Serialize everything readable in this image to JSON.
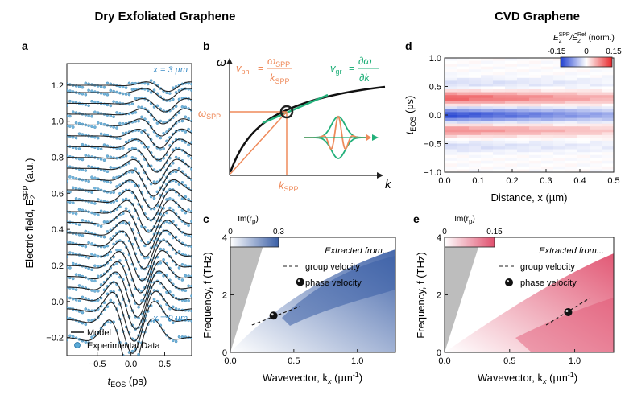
{
  "headings": {
    "left": "Dry Exfoliated Graphene",
    "right": "CVD Graphene"
  },
  "panel_letters": {
    "a": "a",
    "b": "b",
    "c": "c",
    "d": "d",
    "e": "e"
  },
  "panel_a": {
    "ylabel_main": "Electric field, E",
    "ylabel_sub": "2",
    "ylabel_sup": "SPP",
    "ylabel_unit": " (a.u.)",
    "xlabel_main": "t",
    "xlabel_sub": "EOS",
    "xlabel_unit": " (ps)",
    "top_label": "x = 3 µm",
    "bottom_label": "x = 0 µm",
    "legend_model": "Model",
    "legend_exp": "Experimental Data",
    "colors": {
      "model": "#222222",
      "exp": "#5aa9d6",
      "exp_edge": "#1f6fa3"
    }
  },
  "panel_b": {
    "omega_axis": "ω",
    "k_axis": "k",
    "omega_spp": "ω",
    "omega_spp_sub": "SPP",
    "k_spp": "k",
    "k_spp_sub": "SPP",
    "vph": "v",
    "vph_sub": "ph",
    "vph_eq": "=",
    "vph_num": "ω",
    "vph_num_sub": "SPP",
    "vph_den": "k",
    "vph_den_sub": "SPP",
    "vgr": "v",
    "vgr_sub": "gr",
    "vgr_eq": "=",
    "vgr_num": "∂ω",
    "vgr_den": "∂k",
    "colors": {
      "orange": "#ef8a5a",
      "green": "#22b07a"
    }
  },
  "panel_c": {
    "ylabel": "Frequency, f (THz)",
    "xlabel": "Wavevector, k",
    "xlabel_sub": "x",
    "xlabel_unit": " (µm",
    "xlabel_unit_sup": "-1",
    "xlabel_close": ")",
    "cbar_title": "Im(r",
    "cbar_sub": "p",
    "cbar_close": ")",
    "cbar_min": "0",
    "cbar_max": "0.3",
    "extracted": "Extracted from...",
    "group": "group velocity",
    "phase": "phase velocity",
    "colors": {
      "high": "#3b5fa6",
      "low": "#ffffff"
    }
  },
  "panel_d": {
    "ylabel": "t",
    "ylabel_sub": "EOS",
    "ylabel_unit": " (ps)",
    "xlabel": "Distance, x (µm)",
    "cbar_title_a": "E",
    "cbar_title_a_sub": "2",
    "cbar_title_a_sup": "SPP",
    "cbar_title_b": "/Ê",
    "cbar_title_b_sub": "2",
    "cbar_title_b_sup": "Ref",
    "cbar_title_c": " (norm.)",
    "cbar_ticks": [
      "-0.15",
      "0",
      "0.15"
    ],
    "colors": {
      "neg": "#1f3fd0",
      "pos": "#e8262a"
    }
  },
  "panel_e": {
    "ylabel": "Frequency, f (THz)",
    "xlabel": "Wavevector, k",
    "xlabel_sub": "x",
    "xlabel_unit": " (µm",
    "xlabel_unit_sup": "-1",
    "xlabel_close": ")",
    "cbar_title": "Im(r",
    "cbar_sub": "p",
    "cbar_close": ")",
    "cbar_min": "0",
    "cbar_max": "0.15",
    "extracted": "Extracted from...",
    "group": "group velocity",
    "phase": "phase velocity",
    "colors": {
      "high": "#e0506e",
      "low": "#ffffff"
    }
  },
  "chart_data": [
    {
      "type": "line",
      "panel": "a",
      "xlabel": "tEOS (ps)",
      "ylabel": "Electric field, E2SPP (a.u.)",
      "xlim": [
        -0.95,
        0.9
      ],
      "ylim": [
        -0.3,
        1.32
      ],
      "x_ticks": [
        -0.5,
        0.0,
        0.5
      ],
      "y_ticks": [
        -0.2,
        0.0,
        0.2,
        0.4,
        0.6,
        0.8,
        1.0,
        1.2
      ],
      "series": [
        {
          "name": "Model",
          "trace_offsets": [
            -0.2,
            -0.1,
            -0.04,
            0.02,
            0.08,
            0.14,
            0.2,
            0.26,
            0.32,
            0.38,
            0.44,
            0.5,
            0.56,
            0.62,
            0.68,
            0.74,
            0.8,
            0.86,
            0.92,
            0.98,
            1.04,
            1.1,
            1.16,
            1.2
          ]
        },
        {
          "name": "Experimental Data"
        }
      ]
    },
    {
      "type": "line",
      "panel": "b",
      "xlabel": "k",
      "ylabel": "ω",
      "annotations": [
        "ωSPP",
        "kSPP",
        "vph = ωSPP/kSPP",
        "vgr = ∂ω/∂k"
      ]
    },
    {
      "type": "heatmap",
      "panel": "c",
      "xlabel": "Wavevector, kx (µm-1)",
      "ylabel": "Frequency, f (THz)",
      "xlim": [
        0,
        1.3
      ],
      "ylim": [
        0,
        4
      ],
      "x_ticks": [
        0.0,
        0.5,
        1.0
      ],
      "y_ticks": [
        0,
        2,
        4
      ],
      "colorbar": {
        "label": "Im(rp)",
        "range": [
          0,
          0.3
        ]
      },
      "phase_velocity_point": [
        {
          "x": 0.55,
          "y": 2.45
        },
        {
          "x": 0.34,
          "y": 1.28
        }
      ],
      "group_velocity_line": [
        {
          "x": 0.17,
          "y": 0.95
        },
        {
          "x": 0.55,
          "y": 1.6
        }
      ]
    },
    {
      "type": "heatmap",
      "panel": "d",
      "xlabel": "Distance, x (µm)",
      "ylabel": "tEOS (ps)",
      "xlim": [
        0,
        0.5
      ],
      "ylim": [
        -1.0,
        1.0
      ],
      "x_ticks": [
        0.0,
        0.1,
        0.2,
        0.3,
        0.4,
        0.5
      ],
      "y_ticks": [
        -1.0,
        -0.5,
        0.0,
        0.5,
        1.0
      ],
      "colorbar": {
        "label": "E2SPP/Ê2Ref (norm.)",
        "range": [
          -0.15,
          0.15
        ]
      }
    },
    {
      "type": "heatmap",
      "panel": "e",
      "xlabel": "Wavevector, kx (µm-1)",
      "ylabel": "Frequency, f (THz)",
      "xlim": [
        0,
        1.3
      ],
      "ylim": [
        0,
        4
      ],
      "x_ticks": [
        0.0,
        0.5,
        1.0
      ],
      "y_ticks": [
        0,
        2,
        4
      ],
      "colorbar": {
        "label": "Im(rp)",
        "range": [
          0,
          0.15
        ]
      },
      "phase_velocity_point": [
        {
          "x": 0.95,
          "y": 1.4
        }
      ],
      "group_velocity_line": [
        {
          "x": 0.78,
          "y": 0.95
        },
        {
          "x": 1.12,
          "y": 1.9
        }
      ]
    }
  ]
}
